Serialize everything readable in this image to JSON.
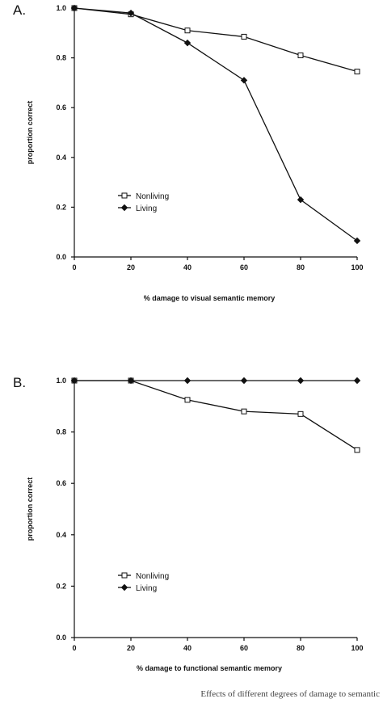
{
  "chart_data": [
    {
      "type": "line",
      "panel_label": "A.",
      "xlabel": "% damage to visual semantic memory",
      "ylabel": "proportion correct",
      "x": [
        0,
        20,
        40,
        60,
        80,
        100
      ],
      "xlim": [
        0,
        100
      ],
      "ylim": [
        0,
        1.0
      ],
      "x_ticks": [
        "0",
        "20",
        "40",
        "60",
        "80",
        "100"
      ],
      "y_ticks": [
        "0.0",
        "0.2",
        "0.4",
        "0.6",
        "0.8",
        "1.0"
      ],
      "legend_position": "lower-left",
      "grid": false,
      "series": [
        {
          "name": "Nonliving",
          "marker": "open-square",
          "values": [
            1.0,
            0.975,
            0.91,
            0.885,
            0.81,
            0.745
          ]
        },
        {
          "name": "Living",
          "marker": "filled-diamond",
          "values": [
            1.0,
            0.98,
            0.86,
            0.71,
            0.23,
            0.065
          ]
        }
      ]
    },
    {
      "type": "line",
      "panel_label": "B.",
      "xlabel": "% damage to functional semantic memory",
      "ylabel": "proportion correct",
      "x": [
        0,
        20,
        40,
        60,
        80,
        100
      ],
      "xlim": [
        0,
        100
      ],
      "ylim": [
        0,
        1.0
      ],
      "x_ticks": [
        "0",
        "20",
        "40",
        "60",
        "80",
        "100"
      ],
      "y_ticks": [
        "0.0",
        "0.2",
        "0.4",
        "0.6",
        "0.8",
        "1.0"
      ],
      "legend_position": "lower-left",
      "grid": false,
      "series": [
        {
          "name": "Nonliving",
          "marker": "open-square",
          "values": [
            1.0,
            1.0,
            0.925,
            0.88,
            0.87,
            0.73
          ]
        },
        {
          "name": "Living",
          "marker": "filled-diamond",
          "values": [
            1.0,
            1.0,
            1.0,
            1.0,
            1.0,
            1.0
          ]
        }
      ]
    }
  ],
  "caption": "Effects of different degrees of damage to semantic"
}
